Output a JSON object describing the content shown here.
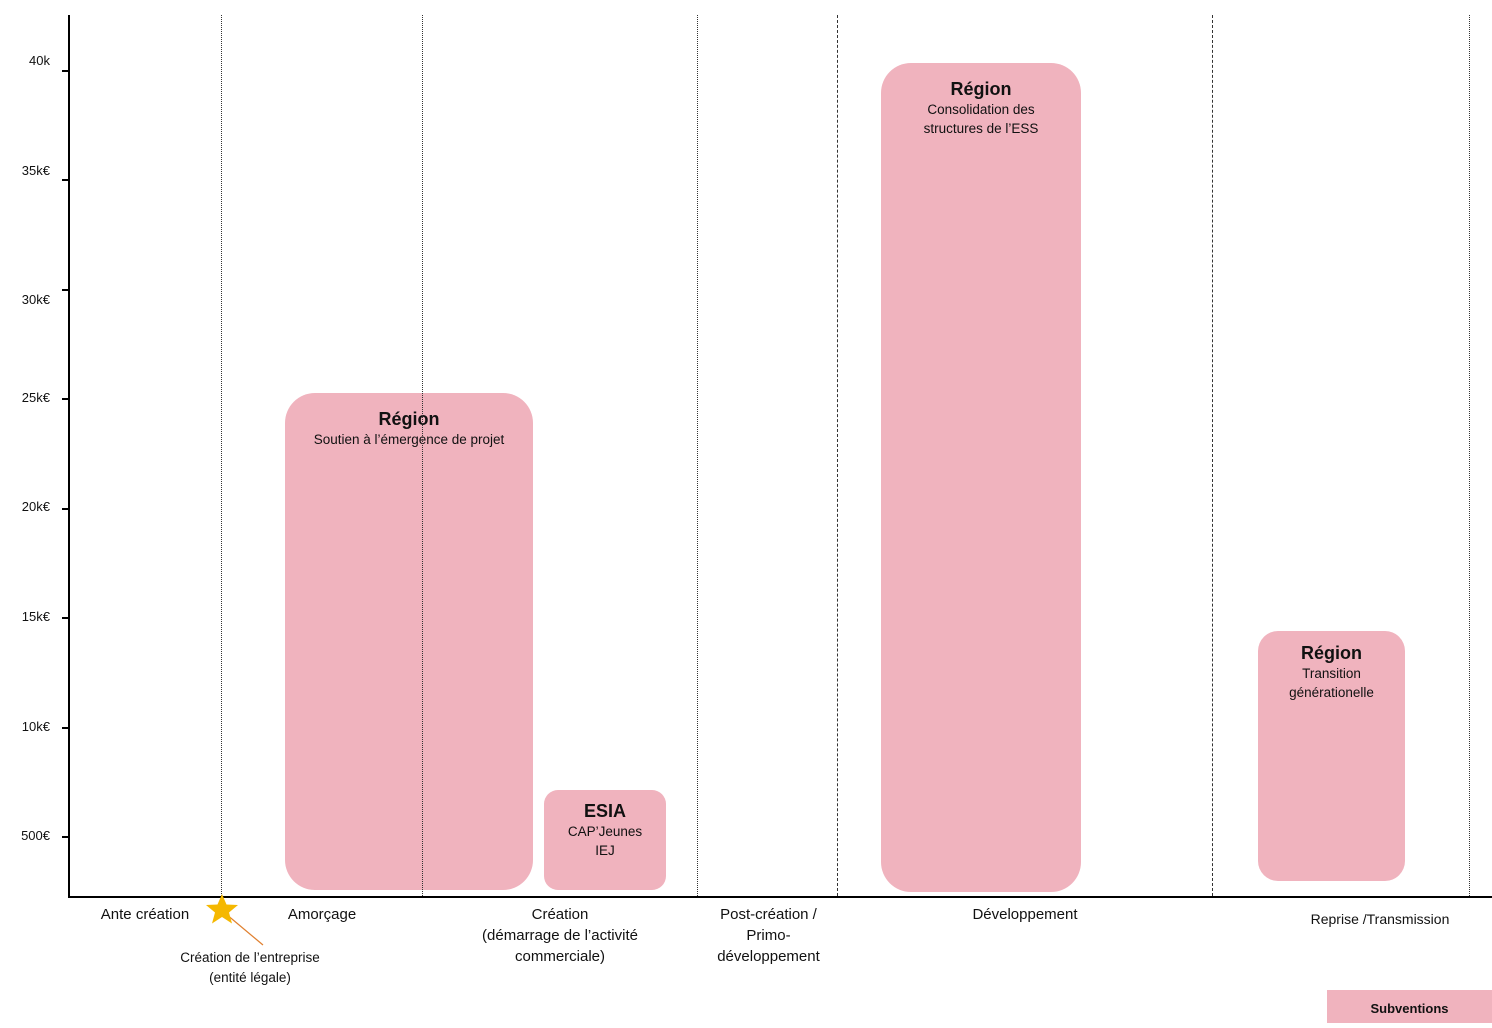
{
  "y_axis": {
    "ticks": [
      "40k",
      "35k€",
      "30k€",
      "25k€",
      "20k€",
      "15k€",
      "10k€",
      "500€"
    ]
  },
  "phases": [
    {
      "label": "Ante création"
    },
    {
      "label": "Amorçage"
    },
    {
      "label": "Création\n(démarrage de l’activité\ncommerciale)"
    },
    {
      "label": "Post-création /\nPrimo-\ndéveloppement"
    },
    {
      "label": "Développement"
    },
    {
      "label": "Reprise /Transmission"
    }
  ],
  "milestone": {
    "label": "Création  de l’entreprise\n(entité légale)",
    "icon": "star-icon",
    "color": "#f5b800"
  },
  "blocks": [
    {
      "title": "Région",
      "subtitle": "Soutien à l’émergence de projet"
    },
    {
      "title": "ESIA",
      "subtitle": "CAP’Jeunes\nIEJ"
    },
    {
      "title": "Région",
      "subtitle": "Consolidation des\nstructures de l’ESS"
    },
    {
      "title": "Région",
      "subtitle": "Transition\ngénérationelle"
    }
  ],
  "legend": {
    "label": "Subventions",
    "color": "#f0b3be"
  }
}
